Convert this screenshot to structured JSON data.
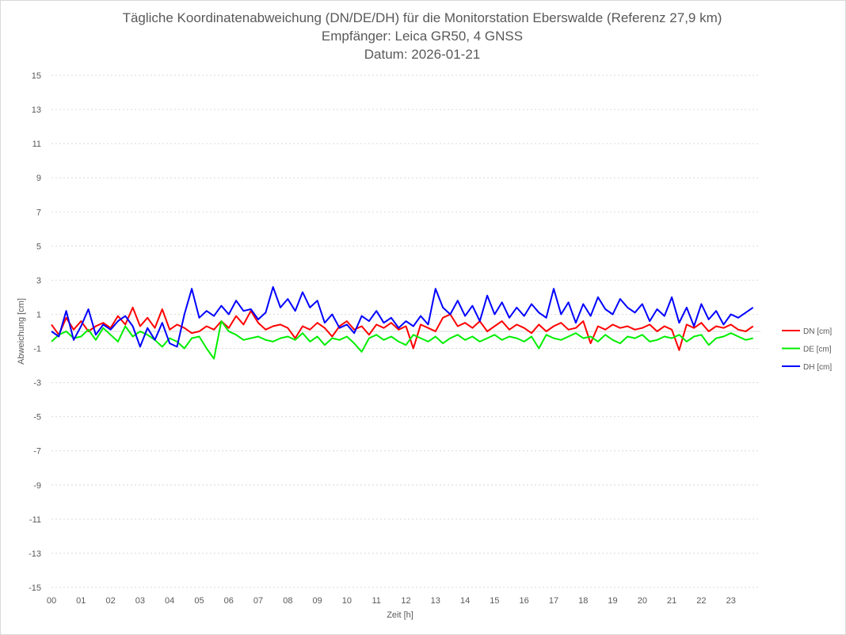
{
  "chart_data": {
    "type": "line",
    "title": [
      "Tägliche Koordinatenabweichung (DN/DE/DH) für die Monitorstation Eberswalde (Referenz 27,9 km)",
      "Empfänger: Leica GR50, 4 GNSS",
      "Datum: 2026-01-21"
    ],
    "xlabel": "Zeit [h]",
    "ylabel": "Abweichung [cm]",
    "xlim": [
      0,
      24
    ],
    "ylim": [
      -15,
      15
    ],
    "yticks": [
      15,
      13,
      11,
      9,
      7,
      5,
      3,
      1,
      -1,
      -3,
      -5,
      -7,
      -9,
      -11,
      -13,
      -15
    ],
    "xticks": [
      "00",
      "01",
      "02",
      "03",
      "04",
      "05",
      "06",
      "07",
      "08",
      "09",
      "10",
      "11",
      "12",
      "13",
      "14",
      "15",
      "16",
      "17",
      "18",
      "19",
      "20",
      "21",
      "22",
      "23"
    ],
    "grid": true,
    "legend_position": "right",
    "x": [
      0,
      0.25,
      0.5,
      0.75,
      1,
      1.25,
      1.5,
      1.75,
      2,
      2.25,
      2.5,
      2.75,
      3,
      3.25,
      3.5,
      3.75,
      4,
      4.25,
      4.5,
      4.75,
      5,
      5.25,
      5.5,
      5.75,
      6,
      6.25,
      6.5,
      6.75,
      7,
      7.25,
      7.5,
      7.75,
      8,
      8.25,
      8.5,
      8.75,
      9,
      9.25,
      9.5,
      9.75,
      10,
      10.25,
      10.5,
      10.75,
      11,
      11.25,
      11.5,
      11.75,
      12,
      12.25,
      12.5,
      12.75,
      13,
      13.25,
      13.5,
      13.75,
      14,
      14.25,
      14.5,
      14.75,
      15,
      15.25,
      15.5,
      15.75,
      16,
      16.25,
      16.5,
      16.75,
      17,
      17.25,
      17.5,
      17.75,
      18,
      18.25,
      18.5,
      18.75,
      19,
      19.25,
      19.5,
      19.75,
      20,
      20.25,
      20.5,
      20.75,
      21,
      21.25,
      21.5,
      21.75,
      22,
      22.25,
      22.5,
      22.75,
      23,
      23.25,
      23.5,
      23.75
    ],
    "series": [
      {
        "name": "DN [cm]",
        "color": "#ff0000",
        "values": [
          0.4,
          -0.2,
          0.8,
          0.1,
          0.6,
          0.0,
          0.3,
          0.5,
          0.2,
          0.9,
          0.4,
          1.4,
          0.3,
          0.8,
          0.2,
          1.3,
          0.1,
          0.4,
          0.2,
          -0.1,
          0.0,
          0.3,
          0.1,
          0.6,
          0.2,
          0.9,
          0.4,
          1.2,
          0.5,
          0.1,
          0.3,
          0.4,
          0.2,
          -0.4,
          0.3,
          0.1,
          0.5,
          0.2,
          -0.3,
          0.3,
          0.6,
          0.1,
          0.3,
          -0.2,
          0.4,
          0.2,
          0.5,
          0.1,
          0.3,
          -1.0,
          0.4,
          0.2,
          0.0,
          0.8,
          1.0,
          0.3,
          0.5,
          0.2,
          0.6,
          0.0,
          0.3,
          0.6,
          0.1,
          0.4,
          0.2,
          -0.1,
          0.4,
          0.0,
          0.3,
          0.5,
          0.1,
          0.2,
          0.6,
          -0.7,
          0.3,
          0.1,
          0.4,
          0.2,
          0.3,
          0.1,
          0.2,
          0.4,
          0.0,
          0.3,
          0.1,
          -1.1,
          0.4,
          0.2,
          0.5,
          0.0,
          0.3,
          0.2,
          0.4,
          0.1,
          0.0,
          0.3
        ]
      },
      {
        "name": "DE [cm]",
        "color": "#00ee00",
        "values": [
          -0.6,
          -0.2,
          0.0,
          -0.4,
          -0.3,
          0.1,
          -0.5,
          0.2,
          -0.2,
          -0.6,
          0.3,
          -0.3,
          0.0,
          -0.2,
          -0.5,
          -0.9,
          -0.4,
          -0.6,
          -1.0,
          -0.4,
          -0.3,
          -1.0,
          -1.6,
          0.6,
          0.0,
          -0.2,
          -0.5,
          -0.4,
          -0.3,
          -0.5,
          -0.6,
          -0.4,
          -0.3,
          -0.5,
          -0.1,
          -0.6,
          -0.3,
          -0.8,
          -0.4,
          -0.5,
          -0.3,
          -0.7,
          -1.2,
          -0.4,
          -0.2,
          -0.5,
          -0.3,
          -0.6,
          -0.8,
          -0.2,
          -0.4,
          -0.6,
          -0.3,
          -0.7,
          -0.4,
          -0.2,
          -0.5,
          -0.3,
          -0.6,
          -0.4,
          -0.2,
          -0.5,
          -0.3,
          -0.4,
          -0.6,
          -0.3,
          -1.0,
          -0.2,
          -0.4,
          -0.5,
          -0.3,
          -0.1,
          -0.4,
          -0.3,
          -0.6,
          -0.2,
          -0.5,
          -0.7,
          -0.3,
          -0.4,
          -0.2,
          -0.6,
          -0.5,
          -0.3,
          -0.4,
          -0.2,
          -0.6,
          -0.3,
          -0.2,
          -0.8,
          -0.4,
          -0.3,
          -0.1,
          -0.3,
          -0.5,
          -0.4
        ]
      },
      {
        "name": "DH [cm]",
        "color": "#0000ff",
        "values": [
          0.0,
          -0.3,
          1.2,
          -0.5,
          0.3,
          1.3,
          -0.2,
          0.4,
          0.1,
          0.6,
          0.9,
          0.3,
          -0.9,
          0.2,
          -0.5,
          0.5,
          -0.7,
          -0.9,
          1.0,
          2.5,
          0.8,
          1.2,
          0.9,
          1.5,
          1.0,
          1.8,
          1.2,
          1.3,
          0.7,
          1.1,
          2.6,
          1.4,
          1.9,
          1.2,
          2.3,
          1.4,
          1.8,
          0.5,
          1.0,
          0.2,
          0.4,
          -0.1,
          0.9,
          0.6,
          1.2,
          0.5,
          0.8,
          0.2,
          0.6,
          0.3,
          0.9,
          0.4,
          2.5,
          1.4,
          1.0,
          1.8,
          0.9,
          1.5,
          0.6,
          2.1,
          1.0,
          1.7,
          0.8,
          1.4,
          0.9,
          1.6,
          1.1,
          0.8,
          2.5,
          1.0,
          1.7,
          0.5,
          1.6,
          0.9,
          2.0,
          1.3,
          1.0,
          1.9,
          1.4,
          1.1,
          1.6,
          0.6,
          1.3,
          0.9,
          2.0,
          0.5,
          1.4,
          0.3,
          1.6,
          0.7,
          1.2,
          0.4,
          1.0,
          0.8,
          1.1,
          1.4
        ]
      }
    ]
  }
}
